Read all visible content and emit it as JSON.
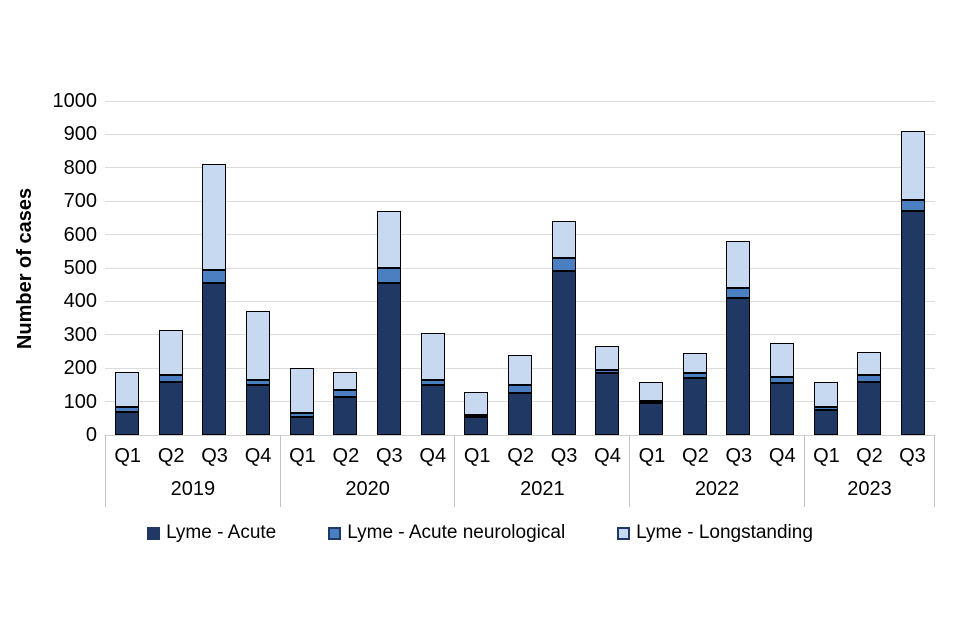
{
  "page": {
    "background": "#ffffff"
  },
  "styles": {
    "gridline_color": "#dcdcdc",
    "axis_line_color": "#d0d0d0",
    "divider_color": "#c3c3c3",
    "bar_border_color": "#000000",
    "text_color": "#000000",
    "legend_swatch_border": "#1f3864"
  },
  "chart_data": {
    "type": "bar",
    "stacked": true,
    "title": "",
    "xlabel": "",
    "ylabel": "Number of cases",
    "ylim": [
      0,
      1000
    ],
    "ytick_interval": 100,
    "yticks": [
      0,
      100,
      200,
      300,
      400,
      500,
      600,
      700,
      800,
      900,
      1000
    ],
    "grid": true,
    "legend_position": "bottom",
    "groups": [
      {
        "year": "2019",
        "quarters": [
          "Q1",
          "Q2",
          "Q3",
          "Q4"
        ]
      },
      {
        "year": "2020",
        "quarters": [
          "Q1",
          "Q2",
          "Q3",
          "Q4"
        ]
      },
      {
        "year": "2021",
        "quarters": [
          "Q1",
          "Q2",
          "Q3",
          "Q4"
        ]
      },
      {
        "year": "2022",
        "quarters": [
          "Q1",
          "Q2",
          "Q3",
          "Q4"
        ]
      },
      {
        "year": "2023",
        "quarters": [
          "Q1",
          "Q2",
          "Q3"
        ]
      }
    ],
    "categories": [
      "2019 Q1",
      "2019 Q2",
      "2019 Q3",
      "2019 Q4",
      "2020 Q1",
      "2020 Q2",
      "2020 Q3",
      "2020 Q4",
      "2021 Q1",
      "2021 Q2",
      "2021 Q3",
      "2021 Q4",
      "2022 Q1",
      "2022 Q2",
      "2022 Q3",
      "2022 Q4",
      "2023 Q1",
      "2023 Q2",
      "2023 Q3"
    ],
    "series": [
      {
        "name": "Lyme - Acute",
        "color": "#1f3864",
        "values": [
          70,
          160,
          455,
          150,
          55,
          115,
          455,
          150,
          55,
          125,
          490,
          185,
          95,
          170,
          410,
          155,
          75,
          160,
          670
        ]
      },
      {
        "name": "Lyme - Acute neurological",
        "color": "#4a7fc1",
        "values": [
          15,
          20,
          40,
          15,
          10,
          20,
          45,
          15,
          5,
          25,
          40,
          10,
          8,
          15,
          30,
          20,
          10,
          20,
          35
        ]
      },
      {
        "name": "Lyme - Longstanding",
        "color": "#c6d9f1",
        "values": [
          105,
          135,
          315,
          205,
          135,
          55,
          170,
          140,
          70,
          90,
          110,
          70,
          57,
          60,
          140,
          100,
          75,
          70,
          205
        ]
      }
    ],
    "totals": [
      190,
      315,
      810,
      370,
      200,
      190,
      670,
      305,
      130,
      240,
      640,
      265,
      160,
      245,
      580,
      275,
      160,
      250,
      910
    ]
  }
}
